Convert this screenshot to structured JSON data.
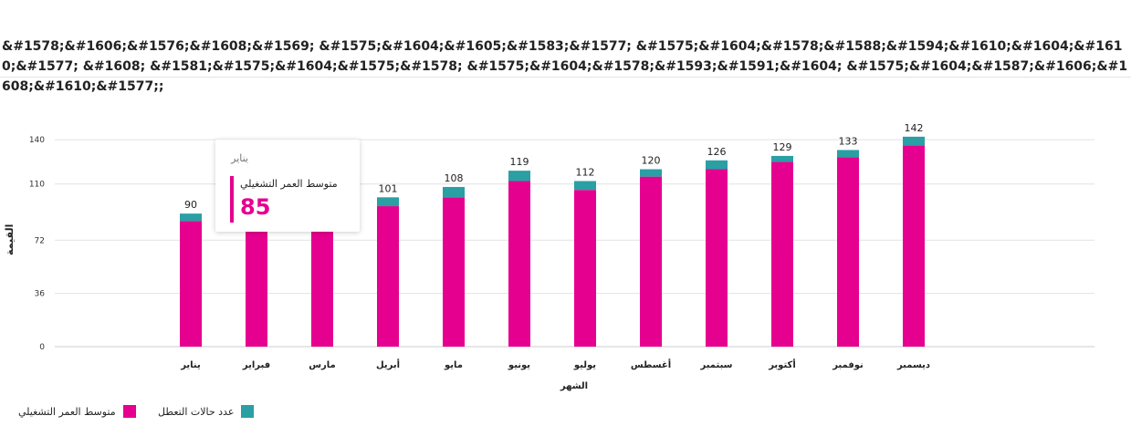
{
  "title": "&#1578;&#1606;&#1576;&#1608;&#1569; &#1575;&#1604;&#1605;&#1583;&#1577; &#1575;&#1604;&#1578;&#1588;&#1594;&#1610;&#1604;&#1610;&#1577; &#1608; &#1581;&#1575;&#1604;&#1575;&#1578; &#1575;&#1604;&#1578;&#1593;&#1591;&#1604; &#1575;&#1604;&#1587;&#1606;&#1608;&#1610;&#1577;;",
  "tooltip": {
    "category": "يناير",
    "series_name": "متوسط العمر التشغيلي",
    "value": "85"
  },
  "legend": {
    "series1": "متوسط العمر التشغيلي",
    "series2": "عدد حالات التعطل"
  },
  "colors": {
    "series1": "#e6008f",
    "series2": "#2a9fa4"
  },
  "chart_data": {
    "type": "bar",
    "stacked": true,
    "xlabel": "الشهر",
    "ylabel": "القيمة",
    "ylim": [
      0,
      145
    ],
    "yticks": [
      0,
      36,
      72,
      110,
      140
    ],
    "grid": true,
    "legend_position": "bottom-right",
    "categories": [
      "يناير",
      "فبراير",
      "مارس",
      "أبريل",
      "مايو",
      "يونيو",
      "يوليو",
      "أغسطس",
      "سبتمبر",
      "أكتوبر",
      "نوفمبر",
      "ديسمبر"
    ],
    "series": [
      {
        "name": "متوسط العمر التشغيلي",
        "values": [
          85,
          87,
          90,
          95,
          101,
          112,
          106,
          115,
          120,
          125,
          128,
          136
        ]
      },
      {
        "name": "عدد حالات التعطل",
        "values": [
          5,
          5,
          5,
          6,
          7,
          7,
          6,
          5,
          6,
          4,
          5,
          6
        ]
      }
    ],
    "totals": [
      90,
      92,
      95,
      101,
      108,
      119,
      112,
      120,
      126,
      129,
      133,
      142
    ]
  }
}
